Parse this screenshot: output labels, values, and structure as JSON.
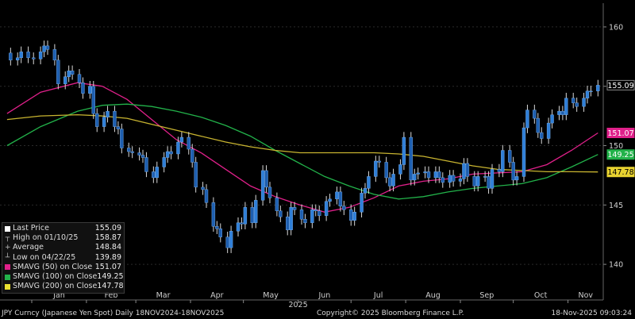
{
  "chart_data": {
    "type": "candlestick",
    "ylim": [
      137,
      162
    ],
    "y_ticks": [
      140,
      145,
      150,
      155,
      160
    ],
    "x_ticks": [
      "Jan",
      "Feb",
      "Mar",
      "Apr",
      "May",
      "Jun",
      "Jul",
      "Aug",
      "Sep",
      "Oct",
      "Nov"
    ],
    "x_year_label": "2025",
    "ohlc_points": [
      {
        "x": "2024-12-18",
        "y": 157.8
      },
      {
        "x": "2024-12-20",
        "y": 157.2
      },
      {
        "x": "2024-12-24",
        "y": 157.4
      },
      {
        "x": "2024-12-26",
        "y": 157.9
      },
      {
        "x": "2024-12-30",
        "y": 157.4
      },
      {
        "x": "2025-01-02",
        "y": 157.3
      },
      {
        "x": "2025-01-06",
        "y": 157.9
      },
      {
        "x": "2025-01-08",
        "y": 158.4
      },
      {
        "x": "2025-01-10",
        "y": 158.1
      },
      {
        "x": "2025-01-14",
        "y": 157.2
      },
      {
        "x": "2025-01-16",
        "y": 155.2
      },
      {
        "x": "2025-01-20",
        "y": 155.8
      },
      {
        "x": "2025-01-22",
        "y": 156.3
      },
      {
        "x": "2025-01-24",
        "y": 156.0
      },
      {
        "x": "2025-01-28",
        "y": 155.3
      },
      {
        "x": "2025-01-30",
        "y": 154.4
      },
      {
        "x": "2025-02-03",
        "y": 155.0
      },
      {
        "x": "2025-02-05",
        "y": 152.7
      },
      {
        "x": "2025-02-07",
        "y": 151.6
      },
      {
        "x": "2025-02-11",
        "y": 152.4
      },
      {
        "x": "2025-02-13",
        "y": 152.9
      },
      {
        "x": "2025-02-17",
        "y": 151.6
      },
      {
        "x": "2025-02-19",
        "y": 151.4
      },
      {
        "x": "2025-02-21",
        "y": 149.8
      },
      {
        "x": "2025-02-25",
        "y": 149.5
      },
      {
        "x": "2025-02-27",
        "y": 149.4
      },
      {
        "x": "2025-03-03",
        "y": 149.2
      },
      {
        "x": "2025-03-05",
        "y": 149.0
      },
      {
        "x": "2025-03-07",
        "y": 147.8
      },
      {
        "x": "2025-03-11",
        "y": 147.3
      },
      {
        "x": "2025-03-13",
        "y": 148.2
      },
      {
        "x": "2025-03-17",
        "y": 149.0
      },
      {
        "x": "2025-03-19",
        "y": 149.5
      },
      {
        "x": "2025-03-21",
        "y": 149.3
      },
      {
        "x": "2025-03-25",
        "y": 150.3
      },
      {
        "x": "2025-03-27",
        "y": 150.7
      },
      {
        "x": "2025-03-31",
        "y": 149.7
      },
      {
        "x": "2025-04-02",
        "y": 148.6
      },
      {
        "x": "2025-04-04",
        "y": 146.5
      },
      {
        "x": "2025-04-08",
        "y": 146.3
      },
      {
        "x": "2025-04-10",
        "y": 145.2
      },
      {
        "x": "2025-04-14",
        "y": 143.2
      },
      {
        "x": "2025-04-16",
        "y": 143.0
      },
      {
        "x": "2025-04-18",
        "y": 142.3
      },
      {
        "x": "2025-04-22",
        "y": 141.4
      },
      {
        "x": "2025-04-24",
        "y": 142.8
      },
      {
        "x": "2025-04-28",
        "y": 143.5
      },
      {
        "x": "2025-04-30",
        "y": 143.4
      },
      {
        "x": "2025-05-02",
        "y": 144.8
      },
      {
        "x": "2025-05-06",
        "y": 143.5
      },
      {
        "x": "2025-05-08",
        "y": 145.4
      },
      {
        "x": "2025-05-12",
        "y": 147.9
      },
      {
        "x": "2025-05-14",
        "y": 146.5
      },
      {
        "x": "2025-05-16",
        "y": 145.6
      },
      {
        "x": "2025-05-20",
        "y": 144.5
      },
      {
        "x": "2025-05-22",
        "y": 144.0
      },
      {
        "x": "2025-05-26",
        "y": 142.9
      },
      {
        "x": "2025-05-28",
        "y": 144.8
      },
      {
        "x": "2025-05-30",
        "y": 144.6
      },
      {
        "x": "2025-06-03",
        "y": 143.8
      },
      {
        "x": "2025-06-05",
        "y": 143.5
      },
      {
        "x": "2025-06-09",
        "y": 144.6
      },
      {
        "x": "2025-06-11",
        "y": 144.5
      },
      {
        "x": "2025-06-13",
        "y": 144.1
      },
      {
        "x": "2025-06-17",
        "y": 145.3
      },
      {
        "x": "2025-06-19",
        "y": 145.5
      },
      {
        "x": "2025-06-23",
        "y": 146.1
      },
      {
        "x": "2025-06-25",
        "y": 144.9
      },
      {
        "x": "2025-06-27",
        "y": 144.6
      },
      {
        "x": "2025-07-01",
        "y": 143.7
      },
      {
        "x": "2025-07-03",
        "y": 144.4
      },
      {
        "x": "2025-07-07",
        "y": 146.0
      },
      {
        "x": "2025-07-09",
        "y": 146.4
      },
      {
        "x": "2025-07-11",
        "y": 147.4
      },
      {
        "x": "2025-07-15",
        "y": 148.7
      },
      {
        "x": "2025-07-17",
        "y": 148.6
      },
      {
        "x": "2025-07-21",
        "y": 147.3
      },
      {
        "x": "2025-07-23",
        "y": 146.6
      },
      {
        "x": "2025-07-25",
        "y": 147.6
      },
      {
        "x": "2025-07-29",
        "y": 148.4
      },
      {
        "x": "2025-07-31",
        "y": 150.7
      },
      {
        "x": "2025-08-04",
        "y": 147.1
      },
      {
        "x": "2025-08-06",
        "y": 147.6
      },
      {
        "x": "2025-08-08",
        "y": 147.7
      },
      {
        "x": "2025-08-12",
        "y": 147.8
      },
      {
        "x": "2025-08-14",
        "y": 147.3
      },
      {
        "x": "2025-08-18",
        "y": 147.8
      },
      {
        "x": "2025-08-20",
        "y": 147.3
      },
      {
        "x": "2025-08-22",
        "y": 146.9
      },
      {
        "x": "2025-08-26",
        "y": 147.5
      },
      {
        "x": "2025-08-28",
        "y": 147.0
      },
      {
        "x": "2025-09-01",
        "y": 147.2
      },
      {
        "x": "2025-09-03",
        "y": 148.5
      },
      {
        "x": "2025-09-05",
        "y": 147.4
      },
      {
        "x": "2025-09-09",
        "y": 146.6
      },
      {
        "x": "2025-09-11",
        "y": 147.4
      },
      {
        "x": "2025-09-15",
        "y": 147.4
      },
      {
        "x": "2025-09-17",
        "y": 146.4
      },
      {
        "x": "2025-09-19",
        "y": 148.0
      },
      {
        "x": "2025-09-23",
        "y": 147.8
      },
      {
        "x": "2025-09-25",
        "y": 149.6
      },
      {
        "x": "2025-09-29",
        "y": 148.6
      },
      {
        "x": "2025-10-01",
        "y": 147.1
      },
      {
        "x": "2025-10-03",
        "y": 147.4
      },
      {
        "x": "2025-10-07",
        "y": 151.5
      },
      {
        "x": "2025-10-09",
        "y": 153.0
      },
      {
        "x": "2025-10-13",
        "y": 152.3
      },
      {
        "x": "2025-10-15",
        "y": 151.1
      },
      {
        "x": "2025-10-17",
        "y": 150.6
      },
      {
        "x": "2025-10-21",
        "y": 151.9
      },
      {
        "x": "2025-10-23",
        "y": 152.6
      },
      {
        "x": "2025-10-27",
        "y": 152.9
      },
      {
        "x": "2025-10-29",
        "y": 152.6
      },
      {
        "x": "2025-10-31",
        "y": 154.0
      },
      {
        "x": "2025-11-04",
        "y": 153.6
      },
      {
        "x": "2025-11-06",
        "y": 153.3
      },
      {
        "x": "2025-11-10",
        "y": 154.0
      },
      {
        "x": "2025-11-12",
        "y": 154.6
      },
      {
        "x": "2025-11-14",
        "y": 154.6
      },
      {
        "x": "2025-11-18",
        "y": 155.09
      }
    ],
    "series": [
      {
        "name": "SMAVG (50) on Close",
        "color": "#e0208a",
        "values": [
          {
            "x": "2024-12-18",
            "y": 152.7
          },
          {
            "x": "2025-01-06",
            "y": 154.5
          },
          {
            "x": "2025-01-27",
            "y": 155.3
          },
          {
            "x": "2025-02-10",
            "y": 155.0
          },
          {
            "x": "2025-02-24",
            "y": 153.9
          },
          {
            "x": "2025-03-10",
            "y": 152.2
          },
          {
            "x": "2025-03-24",
            "y": 150.5
          },
          {
            "x": "2025-04-07",
            "y": 149.4
          },
          {
            "x": "2025-04-21",
            "y": 148.0
          },
          {
            "x": "2025-05-05",
            "y": 146.6
          },
          {
            "x": "2025-05-19",
            "y": 145.7
          },
          {
            "x": "2025-06-02",
            "y": 145.0
          },
          {
            "x": "2025-06-16",
            "y": 144.4
          },
          {
            "x": "2025-06-30",
            "y": 144.8
          },
          {
            "x": "2025-07-14",
            "y": 145.6
          },
          {
            "x": "2025-07-28",
            "y": 146.6
          },
          {
            "x": "2025-08-11",
            "y": 147.0
          },
          {
            "x": "2025-08-25",
            "y": 147.2
          },
          {
            "x": "2025-09-08",
            "y": 147.6
          },
          {
            "x": "2025-09-22",
            "y": 147.7
          },
          {
            "x": "2025-10-06",
            "y": 147.8
          },
          {
            "x": "2025-10-20",
            "y": 148.4
          },
          {
            "x": "2025-11-03",
            "y": 149.6
          },
          {
            "x": "2025-11-18",
            "y": 151.07
          }
        ]
      },
      {
        "name": "SMAVG (100) on Close",
        "color": "#22b24a",
        "values": [
          {
            "x": "2024-12-18",
            "y": 150.0
          },
          {
            "x": "2025-01-06",
            "y": 151.6
          },
          {
            "x": "2025-01-27",
            "y": 152.9
          },
          {
            "x": "2025-02-10",
            "y": 153.4
          },
          {
            "x": "2025-02-24",
            "y": 153.5
          },
          {
            "x": "2025-03-10",
            "y": 153.3
          },
          {
            "x": "2025-03-24",
            "y": 152.9
          },
          {
            "x": "2025-04-07",
            "y": 152.4
          },
          {
            "x": "2025-04-21",
            "y": 151.7
          },
          {
            "x": "2025-05-05",
            "y": 150.8
          },
          {
            "x": "2025-05-19",
            "y": 149.6
          },
          {
            "x": "2025-06-02",
            "y": 148.5
          },
          {
            "x": "2025-06-16",
            "y": 147.4
          },
          {
            "x": "2025-06-30",
            "y": 146.6
          },
          {
            "x": "2025-07-14",
            "y": 145.9
          },
          {
            "x": "2025-07-28",
            "y": 145.5
          },
          {
            "x": "2025-08-11",
            "y": 145.7
          },
          {
            "x": "2025-08-25",
            "y": 146.1
          },
          {
            "x": "2025-09-08",
            "y": 146.4
          },
          {
            "x": "2025-09-22",
            "y": 146.6
          },
          {
            "x": "2025-10-06",
            "y": 146.8
          },
          {
            "x": "2025-10-20",
            "y": 147.3
          },
          {
            "x": "2025-11-03",
            "y": 148.2
          },
          {
            "x": "2025-11-18",
            "y": 149.25
          }
        ]
      },
      {
        "name": "SMAVG (200) on Close",
        "color": "#c8b430",
        "values": [
          {
            "x": "2024-12-18",
            "y": 152.2
          },
          {
            "x": "2025-01-06",
            "y": 152.5
          },
          {
            "x": "2025-01-27",
            "y": 152.6
          },
          {
            "x": "2025-02-10",
            "y": 152.5
          },
          {
            "x": "2025-02-24",
            "y": 152.3
          },
          {
            "x": "2025-03-10",
            "y": 151.8
          },
          {
            "x": "2025-03-24",
            "y": 151.3
          },
          {
            "x": "2025-04-07",
            "y": 150.8
          },
          {
            "x": "2025-04-21",
            "y": 150.3
          },
          {
            "x": "2025-05-05",
            "y": 149.9
          },
          {
            "x": "2025-05-19",
            "y": 149.6
          },
          {
            "x": "2025-06-02",
            "y": 149.4
          },
          {
            "x": "2025-06-16",
            "y": 149.4
          },
          {
            "x": "2025-06-30",
            "y": 149.4
          },
          {
            "x": "2025-07-14",
            "y": 149.4
          },
          {
            "x": "2025-07-28",
            "y": 149.3
          },
          {
            "x": "2025-08-11",
            "y": 149.1
          },
          {
            "x": "2025-08-25",
            "y": 148.7
          },
          {
            "x": "2025-09-08",
            "y": 148.3
          },
          {
            "x": "2025-09-22",
            "y": 148.0
          },
          {
            "x": "2025-10-06",
            "y": 147.9
          },
          {
            "x": "2025-10-20",
            "y": 147.8
          },
          {
            "x": "2025-11-03",
            "y": 147.8
          },
          {
            "x": "2025-11-18",
            "y": 147.78
          }
        ]
      }
    ],
    "price_tags": [
      {
        "value": 155.09,
        "text": "155.09",
        "bg": "#000000",
        "fg": "#ffffff",
        "border": "#888888"
      },
      {
        "value": 151.07,
        "text": "151.07",
        "bg": "#e0208a",
        "fg": "#ffffff",
        "border": "#e0208a"
      },
      {
        "value": 149.25,
        "text": "149.25",
        "bg": "#22b24a",
        "fg": "#ffffff",
        "border": "#22b24a"
      },
      {
        "value": 147.78,
        "text": "147.78",
        "bg": "#e8d230",
        "fg": "#000000",
        "border": "#e8d230"
      }
    ],
    "grid": true,
    "legend_position": "bottom-left"
  },
  "legend": {
    "rows": [
      {
        "label": "Last Price",
        "value": "155.09",
        "swatch": "#ffffff",
        "glyph": ""
      },
      {
        "label": "High on 01/10/25",
        "value": "158.87",
        "swatch": "",
        "glyph": "┬"
      },
      {
        "label": "Average",
        "value": "148.84",
        "swatch": "",
        "glyph": "+"
      },
      {
        "label": "Low on 04/22/25",
        "value": "139.89",
        "swatch": "",
        "glyph": "┴"
      },
      {
        "label": "SMAVG (50)  on Close",
        "value": "151.07",
        "swatch": "#e0208a",
        "glyph": ""
      },
      {
        "label": "SMAVG (100)  on Close",
        "value": "149.25",
        "swatch": "#22b24a",
        "glyph": ""
      },
      {
        "label": "SMAVG (200)  on Close",
        "value": "147.78",
        "swatch": "#e8e030",
        "glyph": ""
      }
    ]
  },
  "footer": {
    "left": "JPY Curncy (Japanese Yen Spot) Daily 18NOV2024-18NOV2025",
    "center": "Copyright© 2025 Bloomberg Finance L.P.",
    "right": "18-Nov-2025 09:03:24"
  },
  "colors": {
    "background": "#000000",
    "grid": "#2a2a2a",
    "axis_text": "#d0d0d0",
    "candle": "#2f7fd8",
    "candle_wick": "#d9d9d9"
  }
}
